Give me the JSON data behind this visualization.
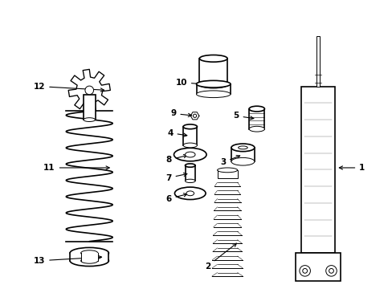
{
  "bg_color": "#ffffff",
  "line_color": "#000000",
  "line_width": 1.2,
  "thin_line": 0.7,
  "fig_width": 4.89,
  "fig_height": 3.6,
  "dpi": 100
}
